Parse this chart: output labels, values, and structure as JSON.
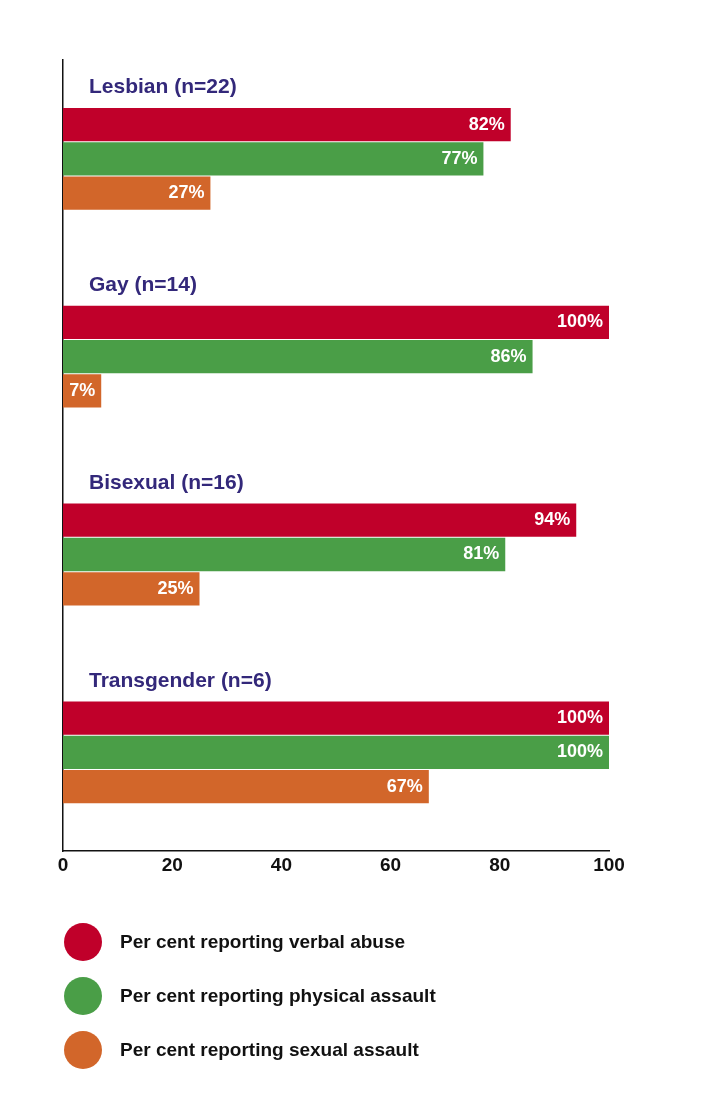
{
  "chart_data": {
    "type": "bar",
    "orientation": "horizontal",
    "categories": [
      "Lesbian (n=22)",
      "Gay (n=14)",
      "Bisexual (n=16)",
      "Transgender (n=6)"
    ],
    "series": [
      {
        "name": "Per cent reporting verbal abuse",
        "color": "#c0002a",
        "values": [
          82,
          100,
          94,
          100
        ]
      },
      {
        "name": "Per cent reporting physical assault",
        "color": "#4a9e47",
        "values": [
          77,
          86,
          81,
          100
        ]
      },
      {
        "name": "Per cent reporting sexual assault",
        "color": "#d2662a",
        "values": [
          27,
          7,
          25,
          67
        ]
      }
    ],
    "value_labels": [
      [
        "82%",
        "100%",
        "94%",
        "100%"
      ],
      [
        "77%",
        "86%",
        "81%",
        "100%"
      ],
      [
        "27%",
        "7%",
        "25%",
        "67%"
      ]
    ],
    "xlim": [
      0,
      100
    ],
    "xticks": [
      0,
      20,
      40,
      60,
      80,
      100
    ],
    "grid": false,
    "legend": "bottom"
  }
}
